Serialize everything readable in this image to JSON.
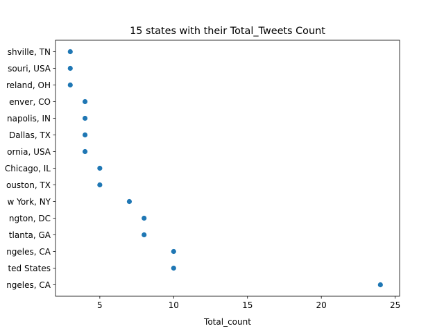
{
  "chart_data": {
    "type": "scatter",
    "title": "15 states with their Total_Tweets Count",
    "xlabel": "Total_count",
    "ylabel": "",
    "xlim": [
      2.0,
      25.3
    ],
    "x_ticks": [
      5,
      10,
      15,
      20,
      25
    ],
    "grid": false,
    "marker_color": "#1f77b4",
    "points": [
      {
        "label": "shville, TN",
        "value": 3
      },
      {
        "label": "souri, USA",
        "value": 3
      },
      {
        "label": "reland, OH",
        "value": 3
      },
      {
        "label": "enver, CO",
        "value": 4
      },
      {
        "label": "napolis, IN",
        "value": 4
      },
      {
        "label": "Dallas, TX",
        "value": 4
      },
      {
        "label": "ornia, USA",
        "value": 4
      },
      {
        "label": "Chicago, IL",
        "value": 5
      },
      {
        "label": "ouston, TX",
        "value": 5
      },
      {
        "label": "w York, NY",
        "value": 7
      },
      {
        "label": "ngton, DC",
        "value": 8
      },
      {
        "label": "tlanta, GA",
        "value": 8
      },
      {
        "label": "ngeles, CA",
        "value": 10
      },
      {
        "label": "ted States",
        "value": 10
      },
      {
        "label": "ngeles, CA",
        "value": 24
      }
    ]
  }
}
